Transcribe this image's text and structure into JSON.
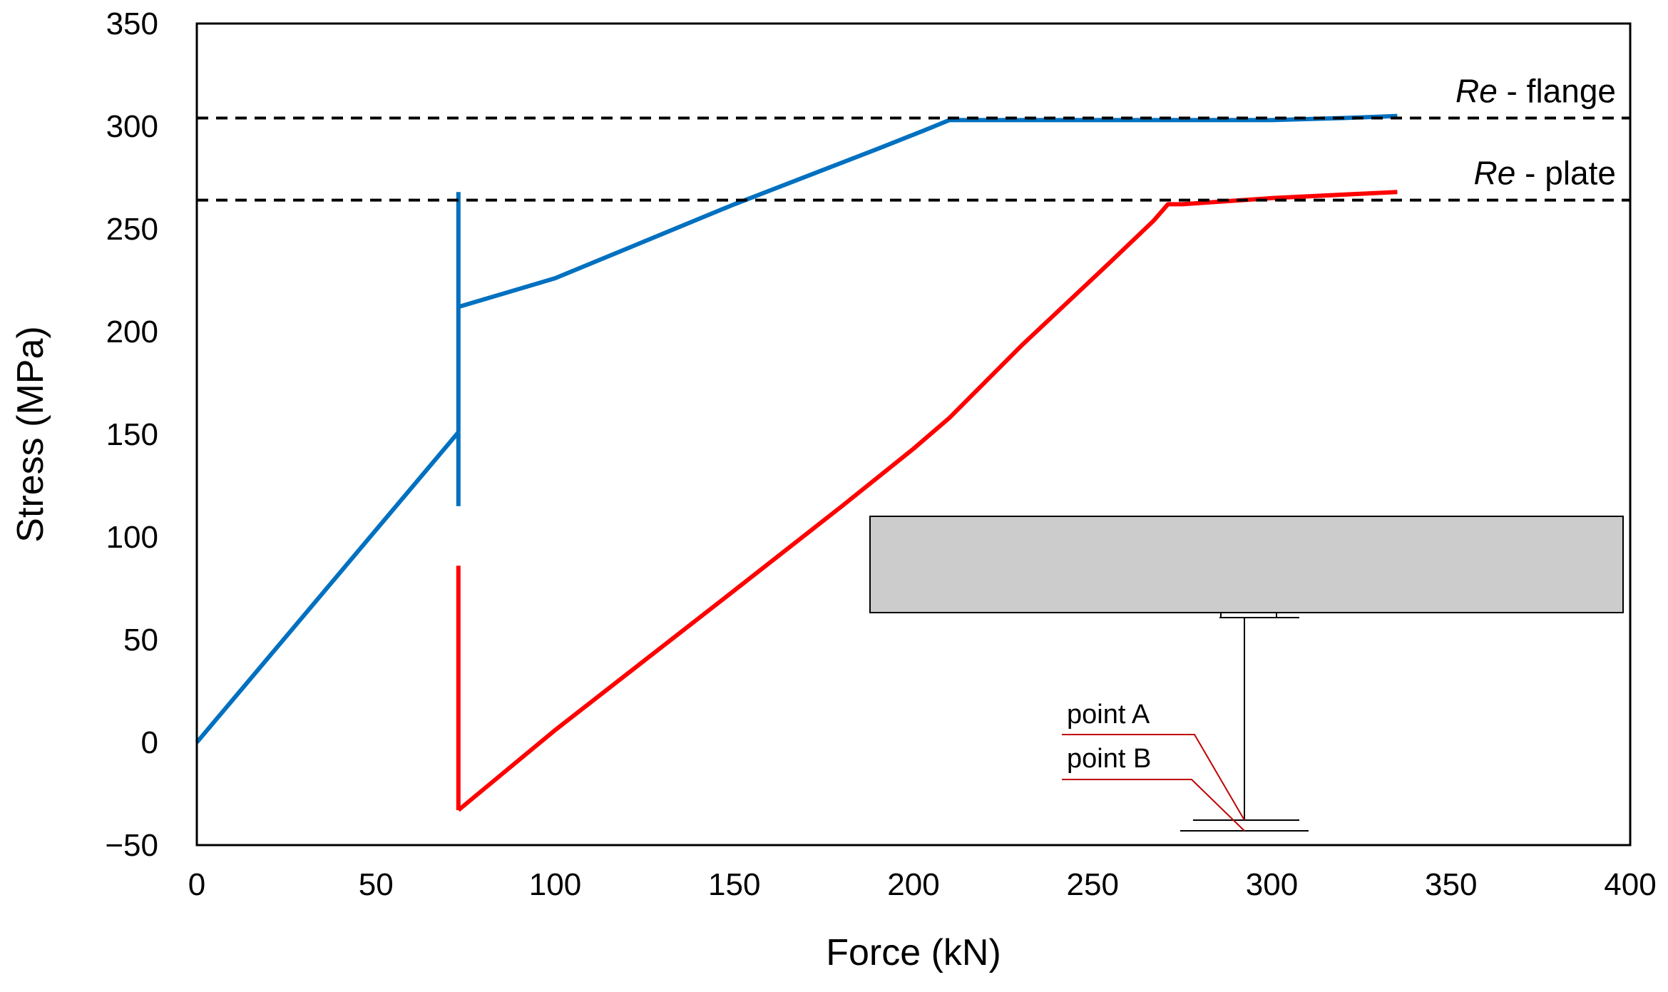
{
  "chart_data": {
    "type": "line",
    "xlabel": "Force (kN)",
    "ylabel": "Stress (MPa)",
    "xlim": [
      0,
      400
    ],
    "ylim": [
      -50,
      350
    ],
    "x_ticks": [
      0,
      50,
      100,
      150,
      200,
      250,
      300,
      350,
      400
    ],
    "y_ticks": [
      -50,
      0,
      50,
      100,
      150,
      200,
      250,
      300,
      350
    ],
    "y_tick_labels": [
      "−50",
      "0",
      "50",
      "100",
      "150",
      "200",
      "250",
      "300",
      "350"
    ],
    "grid": false,
    "legend": "none",
    "series": [
      {
        "color": "#0070C0",
        "segments": [
          [
            [
              0,
              0
            ],
            [
              73,
              151
            ]
          ],
          [
            [
              73,
              151
            ],
            [
              73,
              268
            ]
          ],
          [
            [
              73,
              151
            ],
            [
              73,
              115
            ]
          ],
          [
            [
              73,
              212
            ],
            [
              100,
              226
            ],
            [
              150,
              262
            ],
            [
              190,
              289
            ],
            [
              203,
              298
            ],
            [
              210,
              303
            ],
            [
              220,
              303
            ],
            [
              250,
              303
            ],
            [
              300,
              303
            ],
            [
              320,
              304
            ],
            [
              335,
              305
            ]
          ]
        ]
      },
      {
        "color": "#FF0000",
        "segments": [
          [
            [
              73,
              86
            ],
            [
              73,
              -33
            ]
          ],
          [
            [
              73,
              -33
            ],
            [
              100,
              6
            ],
            [
              150,
              74
            ],
            [
              180,
              115
            ],
            [
              200,
              143
            ],
            [
              210,
              158
            ],
            [
              230,
              193
            ],
            [
              255,
              234
            ],
            [
              267,
              254
            ],
            [
              271,
              262
            ],
            [
              275,
              262
            ],
            [
              300,
              265
            ],
            [
              335,
              268
            ]
          ]
        ]
      }
    ],
    "reference_lines": [
      {
        "y": 304,
        "style": "dashed",
        "color": "#000000",
        "label_italic": "Re",
        "label_rest": " - flange"
      },
      {
        "y": 264,
        "style": "dashed",
        "color": "#000000",
        "label_italic": "Re",
        "label_rest": " - plate"
      }
    ],
    "inset": {
      "description_labels": [
        "point A",
        "point B"
      ],
      "slab_color": "#CCCCCC",
      "leader_color": "#C00000"
    }
  }
}
